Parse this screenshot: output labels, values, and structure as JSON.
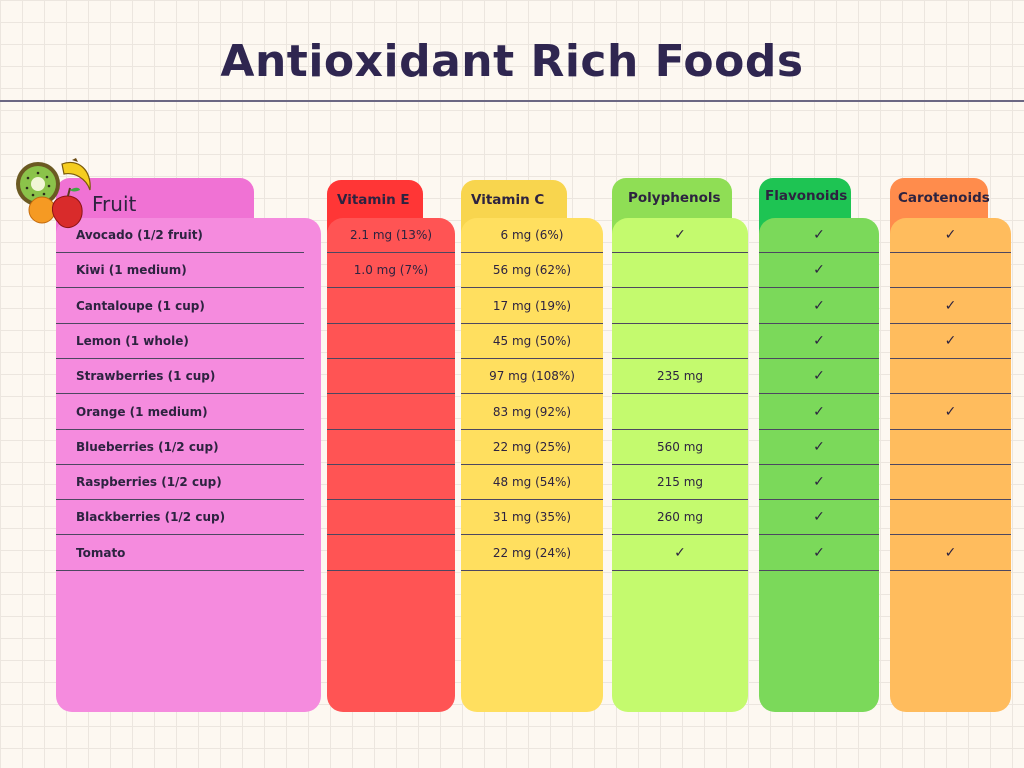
{
  "title": "Antioxidant Rich Foods",
  "columns": [
    {
      "key": "fruit",
      "label": "Fruit"
    },
    {
      "key": "vitE",
      "label": "Vitamin E"
    },
    {
      "key": "vitC",
      "label": "Vitamin C"
    },
    {
      "key": "poly",
      "label": "Polyphenols"
    },
    {
      "key": "flav",
      "label": "Flavonoids"
    },
    {
      "key": "caro",
      "label": "Carotenoids"
    }
  ],
  "check_glyph": "✓",
  "rows": [
    {
      "fruit": "Avocado (1/2 fruit)",
      "vitE": "2.1 mg (13%)",
      "vitC": "6 mg (6%)",
      "poly": true,
      "flav": true,
      "caro": true
    },
    {
      "fruit": "Kiwi (1 medium)",
      "vitE": "1.0 mg (7%)",
      "vitC": "56 mg (62%)",
      "poly": "",
      "flav": true,
      "caro": false
    },
    {
      "fruit": "Cantaloupe (1 cup)",
      "vitE": "",
      "vitC": "17 mg (19%)",
      "poly": "",
      "flav": true,
      "caro": true
    },
    {
      "fruit": "Lemon (1 whole)",
      "vitE": "",
      "vitC": "45 mg (50%)",
      "poly": "",
      "flav": true,
      "caro": true
    },
    {
      "fruit": "Strawberries (1 cup)",
      "vitE": "",
      "vitC": "97 mg (108%)",
      "poly": "235 mg",
      "flav": true,
      "caro": false
    },
    {
      "fruit": "Orange (1 medium)",
      "vitE": "",
      "vitC": "83 mg (92%)",
      "poly": "",
      "flav": true,
      "caro": true
    },
    {
      "fruit": "Blueberries (1/2 cup)",
      "vitE": "",
      "vitC": "22 mg (25%)",
      "poly": "560 mg",
      "flav": true,
      "caro": false
    },
    {
      "fruit": "Raspberries (1/2 cup)",
      "vitE": "",
      "vitC": "48 mg (54%)",
      "poly": "215 mg",
      "flav": true,
      "caro": false
    },
    {
      "fruit": "Blackberries (1/2 cup)",
      "vitE": "",
      "vitC": "31 mg (35%)",
      "poly": "260 mg",
      "flav": true,
      "caro": false
    },
    {
      "fruit": "Tomato",
      "vitE": "",
      "vitC": "22 mg (24%)",
      "poly": true,
      "flav": true,
      "caro": true
    }
  ],
  "colors": {
    "fruit_tab": "#f072d4",
    "fruit_card": "#f58bde",
    "vitE_tab": "#ff3636",
    "vitE_card": "#ff5454",
    "vitC_tab": "#f8d54e",
    "vitC_card": "#ffdf5f",
    "poly_tab": "#8fde55",
    "poly_card": "#c4fa6e",
    "flav_tab": "#1ec453",
    "flav_card": "#7bd95a",
    "caro_tab": "#ff8c4c",
    "caro_card": "#ffbc5d"
  },
  "icons": [
    "fruit-cluster-icon"
  ]
}
